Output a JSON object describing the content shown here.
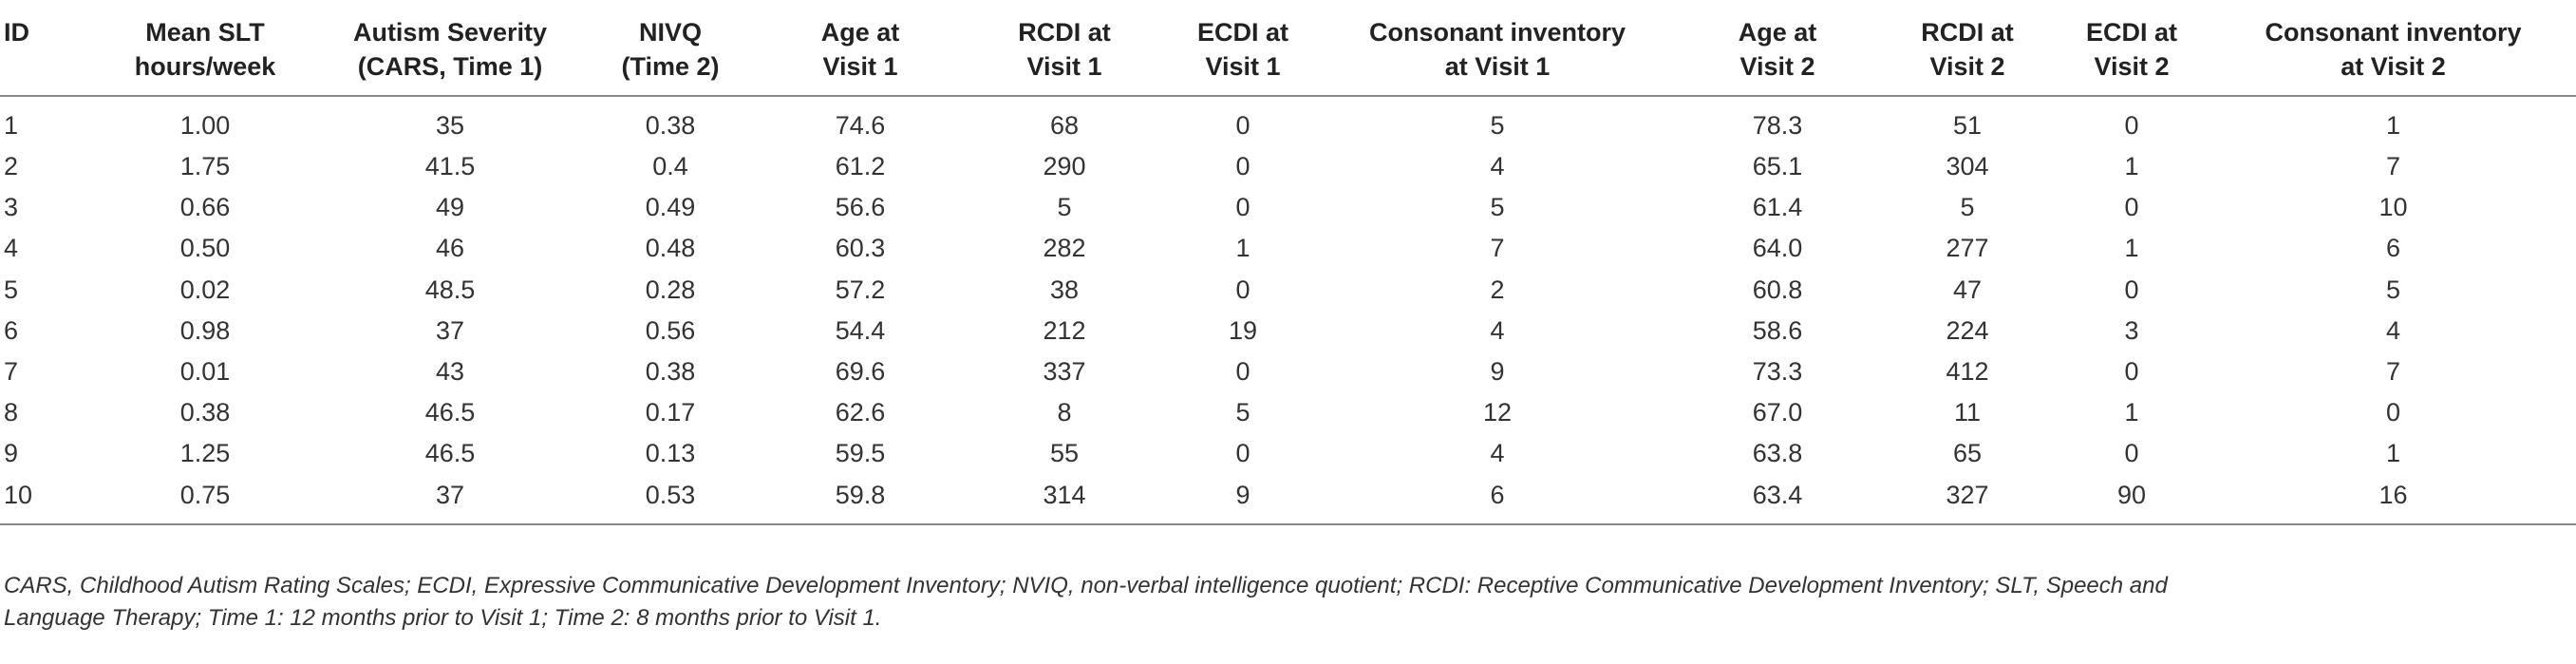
{
  "table": {
    "headers": [
      [
        "ID"
      ],
      [
        "Mean SLT",
        "hours/week"
      ],
      [
        "Autism Severity",
        "(CARS, Time 1)"
      ],
      [
        "NIVQ",
        "(Time 2)"
      ],
      [
        "Age at",
        "Visit 1"
      ],
      [
        "RCDI at",
        "Visit 1"
      ],
      [
        "ECDI at",
        "Visit 1"
      ],
      [
        "Consonant inventory",
        "at Visit 1"
      ],
      [
        "Age at",
        "Visit 2"
      ],
      [
        "RCDI at",
        "Visit 2"
      ],
      [
        "ECDI at",
        "Visit 2"
      ],
      [
        "Consonant inventory",
        "at Visit 2"
      ]
    ],
    "rows": [
      [
        "1",
        "1.00",
        "35",
        "0.38",
        "74.6",
        "68",
        "0",
        "5",
        "78.3",
        "51",
        "0",
        "1"
      ],
      [
        "2",
        "1.75",
        "41.5",
        "0.4",
        "61.2",
        "290",
        "0",
        "4",
        "65.1",
        "304",
        "1",
        "7"
      ],
      [
        "3",
        "0.66",
        "49",
        "0.49",
        "56.6",
        "5",
        "0",
        "5",
        "61.4",
        "5",
        "0",
        "10"
      ],
      [
        "4",
        "0.50",
        "46",
        "0.48",
        "60.3",
        "282",
        "1",
        "7",
        "64.0",
        "277",
        "1",
        "6"
      ],
      [
        "5",
        "0.02",
        "48.5",
        "0.28",
        "57.2",
        "38",
        "0",
        "2",
        "60.8",
        "47",
        "0",
        "5"
      ],
      [
        "6",
        "0.98",
        "37",
        "0.56",
        "54.4",
        "212",
        "19",
        "4",
        "58.6",
        "224",
        "3",
        "4"
      ],
      [
        "7",
        "0.01",
        "43",
        "0.38",
        "69.6",
        "337",
        "0",
        "9",
        "73.3",
        "412",
        "0",
        "7"
      ],
      [
        "8",
        "0.38",
        "46.5",
        "0.17",
        "62.6",
        "8",
        "5",
        "12",
        "67.0",
        "11",
        "1",
        "0"
      ],
      [
        "9",
        "1.25",
        "46.5",
        "0.13",
        "59.5",
        "55",
        "0",
        "4",
        "63.8",
        "65",
        "0",
        "1"
      ],
      [
        "10",
        "0.75",
        "37",
        "0.53",
        "59.8",
        "314",
        "9",
        "6",
        "63.4",
        "327",
        "90",
        "16"
      ]
    ]
  },
  "footnote": {
    "line1": "CARS, Childhood Autism Rating Scales; ECDI, Expressive Communicative Development Inventory; NVIQ, non-verbal intelligence quotient; RCDI: Receptive Communicative Development Inventory; SLT, Speech and",
    "line2": "Language Therapy; Time 1: 12 months prior to Visit 1; Time 2: 8 months prior to Visit 1."
  }
}
